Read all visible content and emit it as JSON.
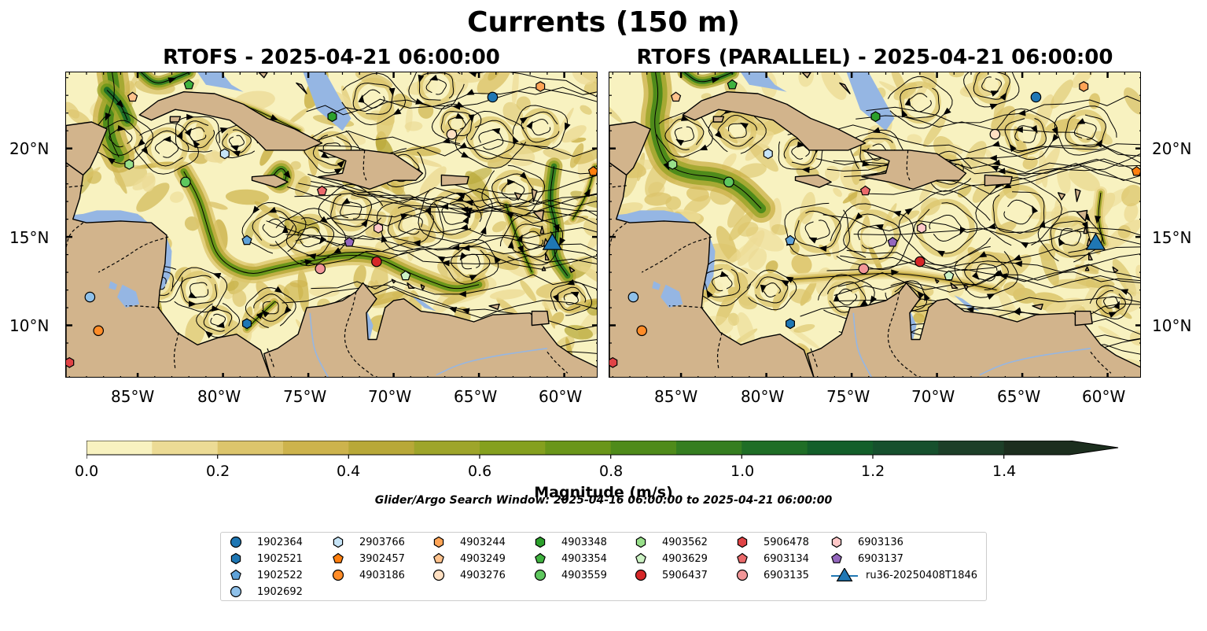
{
  "title": "Currents (150 m)",
  "panels": [
    {
      "title": "RTOFS - 2025-04-21 06:00:00"
    },
    {
      "title": "RTOFS (PARALLEL) - 2025-04-21 06:00:00"
    }
  ],
  "lon_ticks": [
    "85°W",
    "80°W",
    "75°W",
    "70°W",
    "65°W",
    "60°W"
  ],
  "lat_ticks": [
    "20°N",
    "15°N",
    "10°N"
  ],
  "colorbar": {
    "label": "Magnitude (m/s)",
    "ticks": [
      "0.0",
      "0.2",
      "0.4",
      "0.6",
      "0.8",
      "1.0",
      "1.2",
      "1.4"
    ],
    "range": [
      0,
      1.5
    ],
    "extend": "max",
    "colors": [
      "#f8f2c0",
      "#ecdb95",
      "#dcc56c",
      "#cdb34c",
      "#b8a838",
      "#9ea52a",
      "#85a01e",
      "#6a9619",
      "#4f8b1a",
      "#357e20",
      "#1f6e26",
      "#135f2a",
      "#16502d",
      "#1d3f28",
      "#1c2e1e"
    ]
  },
  "search_window": "Glider/Argo Search Window: 2025-04-16 06:00:00 to 2025-04-21 06:00:00",
  "colors": {
    "land": "#d2b48c",
    "water": "#95b6e3",
    "ocean_low": "#f8f2c0",
    "border": "#000000"
  },
  "legend": {
    "items": [
      {
        "label": "1902364",
        "marker": "circle",
        "color": "#1f77b4"
      },
      {
        "label": "1902521",
        "marker": "hexagon",
        "color": "#1f77b4"
      },
      {
        "label": "1902522",
        "marker": "pentagon",
        "color": "#5fa2d9"
      },
      {
        "label": "1902692",
        "marker": "circle",
        "color": "#8fc1ea"
      },
      {
        "label": "2903766",
        "marker": "hexagon",
        "color": "#c6e4f7"
      },
      {
        "label": "3902457",
        "marker": "pentagon",
        "color": "#ff7f0e"
      },
      {
        "label": "4903186",
        "marker": "circle",
        "color": "#ff8c28"
      },
      {
        "label": "4903244",
        "marker": "hexagon",
        "color": "#ffa456"
      },
      {
        "label": "4903249",
        "marker": "pentagon",
        "color": "#ffc28c"
      },
      {
        "label": "4903276",
        "marker": "circle",
        "color": "#ffe0c2"
      },
      {
        "label": "4903348",
        "marker": "hexagon",
        "color": "#2ca02c"
      },
      {
        "label": "4903354",
        "marker": "pentagon",
        "color": "#3fb23f"
      },
      {
        "label": "4903559",
        "marker": "circle",
        "color": "#5ec75e"
      },
      {
        "label": "4903562",
        "marker": "hexagon",
        "color": "#98df8a"
      },
      {
        "label": "4903629",
        "marker": "pentagon",
        "color": "#ccf2c4"
      },
      {
        "label": "5906437",
        "marker": "circle",
        "color": "#d62728"
      },
      {
        "label": "5906478",
        "marker": "hexagon",
        "color": "#e04446"
      },
      {
        "label": "6903134",
        "marker": "pentagon",
        "color": "#ea6a6b"
      },
      {
        "label": "6903135",
        "marker": "circle",
        "color": "#f29698"
      },
      {
        "label": "6903136",
        "marker": "hexagon",
        "color": "#ffc8c8"
      },
      {
        "label": "6903137",
        "marker": "pentagon",
        "color": "#9467bd"
      },
      {
        "label": "ru36-20250408T1846",
        "marker": "triangle",
        "color": "#1f77b4"
      }
    ]
  },
  "floats": [
    {
      "id": "1902364",
      "lon": -64.2,
      "lat": 22.9
    },
    {
      "id": "1902521",
      "lon": -78.6,
      "lat": 10.1
    },
    {
      "id": "1902522",
      "lon": -78.6,
      "lat": 14.8
    },
    {
      "id": "1902692",
      "lon": -87.8,
      "lat": 11.6
    },
    {
      "id": "2903766",
      "lon": -79.9,
      "lat": 19.7
    },
    {
      "id": "3902457",
      "lon": -58.3,
      "lat": 18.7
    },
    {
      "id": "4903186",
      "lon": -87.3,
      "lat": 9.7
    },
    {
      "id": "4903244",
      "lon": -61.4,
      "lat": 23.5
    },
    {
      "id": "4903249",
      "lon": -85.3,
      "lat": 22.9
    },
    {
      "id": "4903276",
      "lon": -66.6,
      "lat": 20.8
    },
    {
      "id": "4903348",
      "lon": -73.6,
      "lat": 21.8
    },
    {
      "id": "4903354",
      "lon": -82.0,
      "lat": 23.6
    },
    {
      "id": "4903559",
      "lon": -82.2,
      "lat": 18.1
    },
    {
      "id": "4903562",
      "lon": -85.5,
      "lat": 19.1
    },
    {
      "id": "4903629",
      "lon": -69.3,
      "lat": 12.8
    },
    {
      "id": "5906437",
      "lon": -71.0,
      "lat": 13.6
    },
    {
      "id": "5906478",
      "lon": -89.0,
      "lat": 7.9
    },
    {
      "id": "6903134",
      "lon": -74.2,
      "lat": 17.6
    },
    {
      "id": "6903135",
      "lon": -74.3,
      "lat": 13.2
    },
    {
      "id": "6903136",
      "lon": -70.9,
      "lat": 15.5
    },
    {
      "id": "6903137",
      "lon": -72.6,
      "lat": 14.7
    }
  ],
  "glider": {
    "id": "ru36-20250408T1846",
    "lon": -60.7,
    "lat": 14.7
  }
}
